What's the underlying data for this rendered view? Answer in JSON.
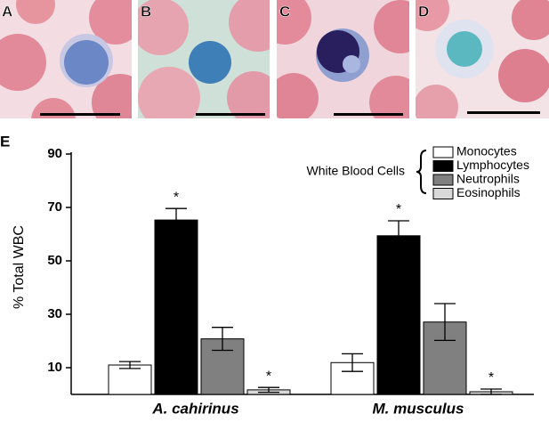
{
  "panels": {
    "labels": [
      "A",
      "B",
      "C",
      "D"
    ]
  },
  "chart_data": {
    "type": "bar",
    "panel_label": "E",
    "ylabel": "% Total WBC",
    "categories": [
      "A. cahirinus",
      "M. musculus"
    ],
    "legend_title": "White Blood Cells",
    "legend": "upper right",
    "series": [
      {
        "name": "Monocytes",
        "color": "#ffffff",
        "values": [
          11,
          11.9
        ],
        "errors": [
          1.3,
          3.3
        ]
      },
      {
        "name": "Lymphocytes",
        "color": "#000000",
        "values": [
          65.3,
          59.4
        ],
        "errors": [
          4.3,
          5.6
        ],
        "significance": [
          "*",
          "*"
        ]
      },
      {
        "name": "Neutrophils",
        "color": "#808080",
        "values": [
          20.8,
          27.1
        ],
        "errors": [
          4.3,
          6.9
        ]
      },
      {
        "name": "Eosinophils",
        "color": "#d9d9d9",
        "values": [
          1.7,
          1.0
        ],
        "errors": [
          0.9,
          1.0
        ],
        "significance": [
          "*",
          "*"
        ]
      }
    ],
    "ylim": [
      0,
      90
    ],
    "yticks": [
      10,
      30,
      50,
      70,
      90
    ]
  }
}
